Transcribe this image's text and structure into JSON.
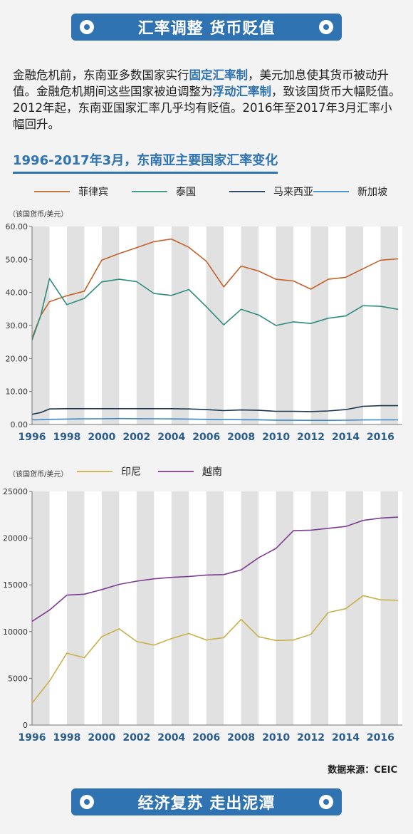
{
  "banner_top": "汇率调整 货币贬值",
  "banner_bottom": "经济复苏 走出泥潭",
  "paragraph": {
    "p1": "金融危机前，东南亚多数国家实行",
    "h1": "固定汇率制",
    "p2": "，美元加息使其货币被动升值。金融危机期间这些国家被迫调整为",
    "h2": "浮动汇率制",
    "p3": "，致该国货币大幅贬值。2012年起，东南亚国家汇率几乎均有贬值。2016年至2017年3月汇率小幅回升。"
  },
  "subtitle": "1996-2017年3月，东南亚主要国家汇率变化",
  "source": "数据来源：CEIC",
  "chart_data": [
    {
      "type": "line",
      "ylabel": "（该国货币/美元）",
      "ylim": [
        0,
        60
      ],
      "yticks": [
        "0.00",
        "10.00",
        "20.00",
        "30.00",
        "40.00",
        "50.00",
        "60.00"
      ],
      "ytick_values": [
        0,
        10,
        20,
        30,
        40,
        50,
        60
      ],
      "xlim": [
        1996,
        2017.25
      ],
      "xtick_labels": [
        "1996",
        "1998",
        "2000",
        "2002",
        "2004",
        "2006",
        "2008",
        "2010",
        "2012",
        "2014",
        "2016"
      ],
      "xtick_values": [
        1996,
        1998,
        2000,
        2002,
        2004,
        2006,
        2008,
        2010,
        2012,
        2014,
        2016
      ],
      "grid": "alternating vertical bands",
      "legend": "top",
      "x": [
        1996,
        1996.5,
        1997,
        1998,
        1999,
        2000,
        2001,
        2002,
        2003,
        2004,
        2005,
        2006,
        2007,
        2008,
        2009,
        2010,
        2011,
        2012,
        2013,
        2014,
        2015,
        2016,
        2017
      ],
      "series": [
        {
          "name": "菲律宾",
          "color": "#c5622b",
          "values": [
            26.2,
            33.0,
            37.2,
            39.0,
            40.4,
            49.8,
            51.8,
            53.6,
            55.4,
            56.2,
            53.7,
            49.5,
            41.7,
            48.0,
            46.5,
            44.0,
            43.5,
            41.0,
            44.0,
            44.6,
            47.2,
            49.8,
            50.2
          ]
        },
        {
          "name": "泰国",
          "color": "#2f8c7e",
          "values": [
            25.6,
            33.0,
            44.2,
            36.3,
            38.2,
            43.2,
            44.0,
            43.3,
            39.7,
            39.1,
            40.9,
            35.7,
            30.2,
            34.9,
            33.2,
            30.0,
            31.1,
            30.6,
            32.2,
            32.9,
            36.0,
            35.8,
            34.9
          ]
        },
        {
          "name": "马来西亚",
          "color": "#1a3452",
          "values": [
            3.1,
            3.6,
            4.7,
            4.8,
            4.8,
            4.8,
            4.8,
            4.8,
            4.8,
            4.8,
            4.7,
            4.5,
            4.2,
            4.4,
            4.3,
            4.0,
            4.0,
            3.9,
            4.1,
            4.5,
            5.5,
            5.7,
            5.7
          ]
        },
        {
          "name": "新加坡",
          "color": "#3d86c7",
          "values": [
            1.4,
            1.45,
            1.55,
            1.65,
            1.7,
            1.72,
            1.8,
            1.75,
            1.72,
            1.68,
            1.65,
            1.55,
            1.5,
            1.45,
            1.42,
            1.32,
            1.28,
            1.25,
            1.26,
            1.3,
            1.38,
            1.4,
            1.4
          ]
        }
      ]
    },
    {
      "type": "line",
      "ylabel": "（该国货币/美元）",
      "ylim": [
        0,
        25000
      ],
      "yticks": [
        "0",
        "5000",
        "10000",
        "15000",
        "20000",
        "25000"
      ],
      "ytick_values": [
        0,
        5000,
        10000,
        15000,
        20000,
        25000
      ],
      "xlim": [
        1996,
        2017.25
      ],
      "xtick_labels": [
        "1996",
        "1998",
        "2000",
        "2002",
        "2004",
        "2006",
        "2008",
        "2010",
        "2012",
        "2014",
        "2016"
      ],
      "xtick_values": [
        1996,
        1998,
        2000,
        2002,
        2004,
        2006,
        2008,
        2010,
        2012,
        2014,
        2016
      ],
      "grid": "alternating vertical bands",
      "legend": "top",
      "x": [
        1996,
        1997,
        1998,
        1999,
        2000,
        2001,
        2002,
        2003,
        2004,
        2005,
        2006,
        2007,
        2008,
        2009,
        2010,
        2011,
        2012,
        2013,
        2014,
        2015,
        2016,
        2017
      ],
      "series": [
        {
          "name": "印尼",
          "color": "#c9b04a",
          "values": [
            2350,
            4700,
            7700,
            7200,
            9450,
            10300,
            8950,
            8550,
            9250,
            9800,
            9100,
            9350,
            11300,
            9450,
            9050,
            9100,
            9700,
            12050,
            12450,
            13850,
            13400,
            13350
          ]
        },
        {
          "name": "越南",
          "color": "#7e3d93",
          "values": [
            11100,
            12300,
            13900,
            14000,
            14500,
            15050,
            15400,
            15650,
            15800,
            15900,
            16050,
            16100,
            16600,
            17900,
            18900,
            20800,
            20850,
            21050,
            21250,
            21900,
            22150,
            22250
          ]
        }
      ]
    }
  ]
}
